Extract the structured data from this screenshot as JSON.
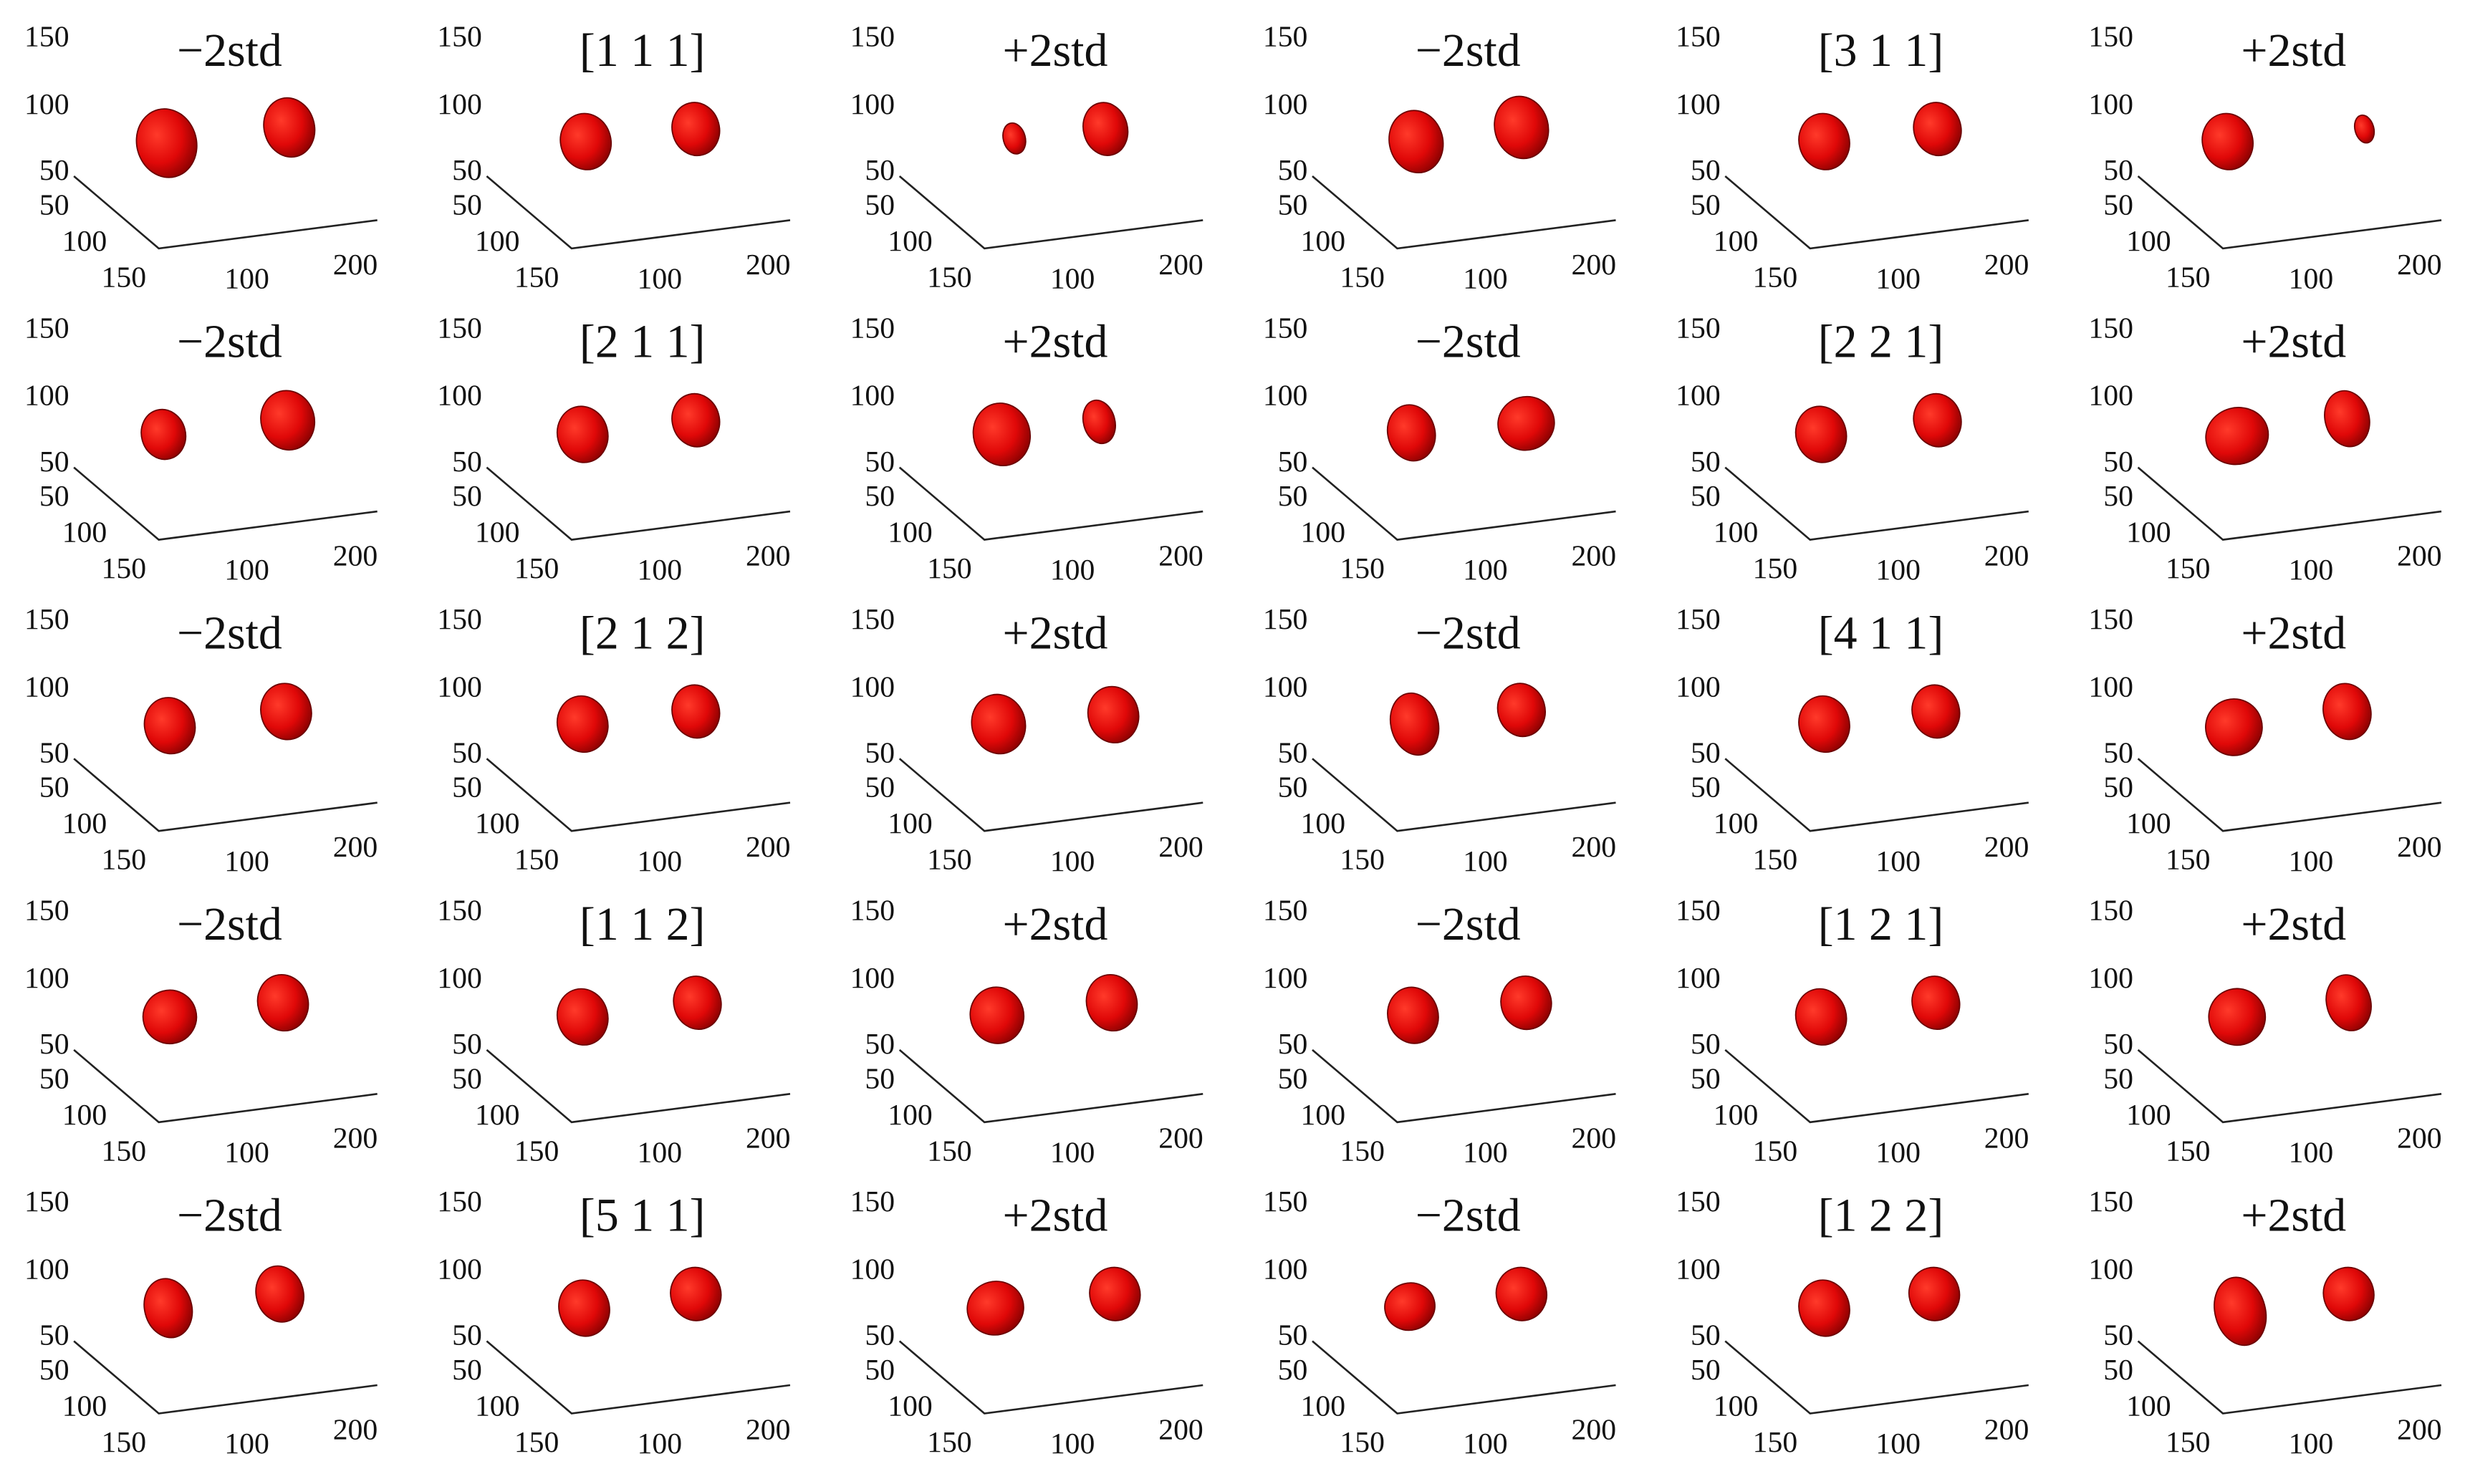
{
  "panels": [
    {
      "title": "−2std"
    },
    {
      "title": "[1 1 1]"
    },
    {
      "title": "+2std"
    },
    {
      "title": "−2std"
    },
    {
      "title": "[3 1 1]"
    },
    {
      "title": "+2std"
    },
    {
      "title": "−2std"
    },
    {
      "title": "[2 1 1]"
    },
    {
      "title": "+2std"
    },
    {
      "title": "−2std"
    },
    {
      "title": "[2 2 1]"
    },
    {
      "title": "+2std"
    },
    {
      "title": "−2std"
    },
    {
      "title": "[2 1 2]"
    },
    {
      "title": "+2std"
    },
    {
      "title": "−2std"
    },
    {
      "title": "[4 1 1]"
    },
    {
      "title": "+2std"
    },
    {
      "title": "−2std"
    },
    {
      "title": "[1 1 2]"
    },
    {
      "title": "+2std"
    },
    {
      "title": "−2std"
    },
    {
      "title": "[1 2 1]"
    },
    {
      "title": "+2std"
    },
    {
      "title": "−2std"
    },
    {
      "title": "[5 1 1]"
    },
    {
      "title": "+2std"
    },
    {
      "title": "−2std"
    },
    {
      "title": "[1 2 2]"
    },
    {
      "title": "+2std"
    }
  ],
  "axes": {
    "z": [
      "150",
      "100",
      "50"
    ],
    "y": [
      "50",
      "100",
      "150"
    ],
    "x": [
      "100",
      "200"
    ]
  }
}
